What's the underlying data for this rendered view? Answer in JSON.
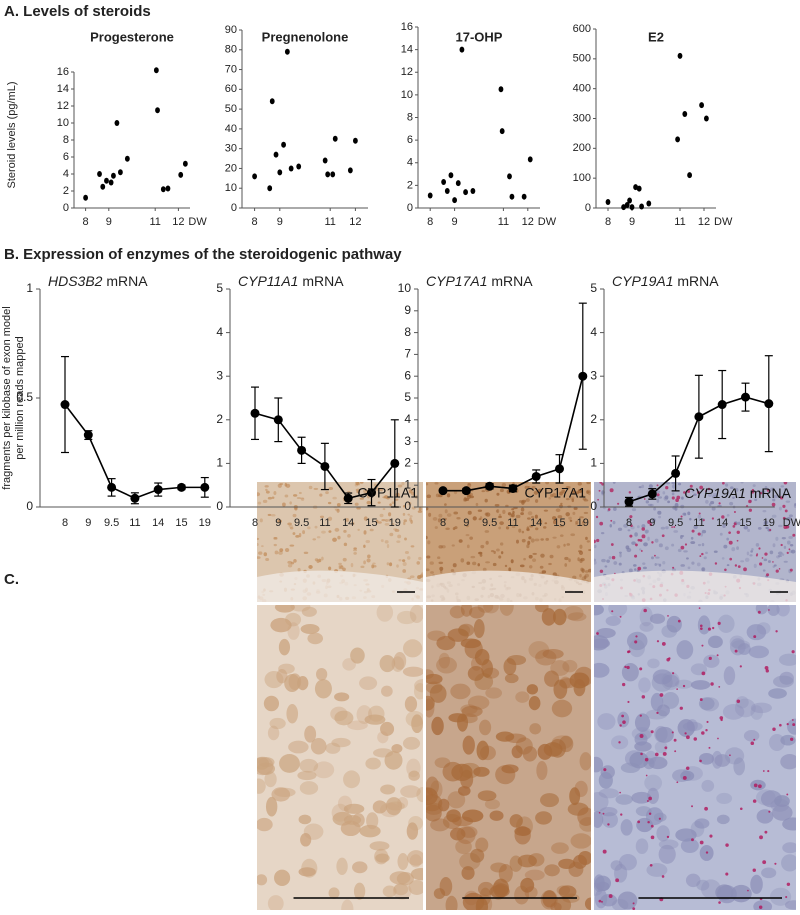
{
  "figure": {
    "panel_a": "A. Levels of steroids",
    "panel_b": "B. Expression of enzymes of the steroidogenic pathway",
    "panel_c": "C.",
    "ylabel_a": "Steroid levels (pg/mL)",
    "ylabel_b": [
      "fragments per kilobase of exon model",
      "per million reads mapped"
    ],
    "images": [
      {
        "label": "CYP11A1"
      },
      {
        "label": "CYP17A1"
      },
      {
        "label_gene": "CYP19A1",
        "label_suffix": "mRNA"
      }
    ]
  },
  "chart_data": [
    {
      "type": "scatter",
      "title": "Progesterone",
      "color": "#000000",
      "x_unit": "DW",
      "x": [
        8.0,
        8.6,
        8.74,
        8.9,
        9.1,
        9.2,
        9.35,
        9.5,
        9.8,
        11.05,
        11.1,
        11.35,
        11.55,
        12.1,
        12.3
      ],
      "values": [
        1.2,
        4,
        2.5,
        3.2,
        3,
        3.8,
        10,
        4.2,
        5.8,
        16.2,
        11.5,
        2.2,
        2.3,
        3.9,
        5.2
      ],
      "xlim": [
        7.5,
        12.5
      ],
      "xticks": [
        8,
        9,
        11,
        12
      ],
      "ylim": [
        0,
        16
      ],
      "yticks": [
        0,
        2,
        4,
        6,
        8,
        10,
        12,
        14,
        16
      ]
    },
    {
      "type": "scatter",
      "title": "Pregnenolone",
      "color": "#000000",
      "x": [
        8.0,
        8.6,
        8.7,
        8.85,
        9.0,
        9.15,
        9.3,
        9.45,
        9.75,
        10.8,
        10.9,
        11.1,
        11.2,
        11.8,
        12.0
      ],
      "values": [
        16,
        10,
        54,
        27,
        18,
        32,
        79,
        20,
        21,
        24,
        17,
        17,
        35,
        19,
        34
      ],
      "xlim": [
        7.5,
        12.5
      ],
      "xticks": [
        8,
        9,
        11,
        12
      ],
      "ylim": [
        0,
        90
      ],
      "yticks": [
        0,
        10,
        20,
        30,
        40,
        50,
        60,
        70,
        80,
        90
      ]
    },
    {
      "type": "scatter",
      "title": "17-OHP",
      "color": "#000000",
      "x_unit": "DW",
      "x": [
        8.0,
        8.55,
        8.7,
        8.85,
        9.0,
        9.15,
        9.3,
        9.45,
        9.75,
        10.9,
        10.95,
        11.25,
        11.35,
        11.85,
        12.1
      ],
      "values": [
        1.1,
        2.3,
        1.5,
        2.9,
        0.7,
        2.2,
        14,
        1.4,
        1.5,
        10.5,
        6.8,
        2.8,
        1.0,
        1.0,
        4.3
      ],
      "xlim": [
        7.5,
        12.5
      ],
      "xticks": [
        8,
        9,
        11,
        12
      ],
      "ylim": [
        0,
        16
      ],
      "yticks": [
        0,
        2,
        4,
        6,
        8,
        10,
        12,
        14,
        16
      ]
    },
    {
      "type": "scatter",
      "title": "E2",
      "color": "#000000",
      "x_unit": "DW",
      "x": [
        8.0,
        8.65,
        8.8,
        8.9,
        9.0,
        9.15,
        9.3,
        9.4,
        9.7,
        10.9,
        11.0,
        11.2,
        11.4,
        11.9,
        12.1
      ],
      "values": [
        20,
        3,
        10,
        25,
        3,
        70,
        65,
        5,
        15,
        230,
        510,
        315,
        110,
        345,
        300
      ],
      "xlim": [
        7.5,
        12.5
      ],
      "xticks": [
        8,
        9,
        11,
        12
      ],
      "ylim": [
        0,
        600
      ],
      "yticks": [
        0,
        100,
        200,
        300,
        400,
        500,
        600
      ]
    },
    {
      "type": "line",
      "title_gene": "HDS3B2",
      "title_suffix": "mRNA",
      "color": "#000000",
      "categories": [
        "8",
        "9",
        "9.5",
        "11",
        "14",
        "15",
        "19"
      ],
      "values": [
        0.47,
        0.33,
        0.09,
        0.04,
        0.08,
        0.09,
        0.09
      ],
      "errors": [
        0.22,
        0.02,
        0.04,
        0.025,
        0.03,
        0.01,
        0.045
      ],
      "ylim": [
        0,
        1
      ],
      "yticks": [
        0,
        0.5,
        1
      ]
    },
    {
      "type": "line",
      "title_gene": "CYP11A1",
      "title_suffix": "mRNA",
      "color": "#000000",
      "categories": [
        "8",
        "9",
        "9.5",
        "11",
        "14",
        "15",
        "19"
      ],
      "values": [
        2.15,
        2.0,
        1.3,
        0.93,
        0.2,
        0.33,
        1.0
      ],
      "errors": [
        0.6,
        0.5,
        0.3,
        0.53,
        0.12,
        0.3,
        1.0
      ],
      "ylim": [
        0,
        5
      ],
      "yticks": [
        0,
        1,
        2,
        3,
        4,
        5
      ]
    },
    {
      "type": "line",
      "title_gene": "CYP17A1",
      "title_suffix": "mRNA",
      "color": "#000000",
      "categories": [
        "8",
        "9",
        "9.5",
        "11",
        "14",
        "15",
        "19"
      ],
      "values": [
        0.75,
        0.75,
        0.95,
        0.85,
        1.4,
        1.75,
        6.0
      ],
      "errors": [
        0.05,
        0.1,
        0.12,
        0.15,
        0.3,
        0.65,
        3.35
      ],
      "ylim": [
        0,
        10
      ],
      "yticks": [
        0,
        1,
        2,
        3,
        4,
        5,
        6,
        7,
        8,
        9,
        10
      ]
    },
    {
      "type": "line",
      "title_gene": "CYP19A1",
      "title_suffix": "mRNA",
      "color": "#000000",
      "x_unit": "DW",
      "categories": [
        "8",
        "9",
        "9.5",
        "11",
        "14",
        "15",
        "19"
      ],
      "values": [
        0.12,
        0.3,
        0.77,
        2.07,
        2.35,
        2.52,
        2.37
      ],
      "errors": [
        0.1,
        0.12,
        0.4,
        0.95,
        0.78,
        0.32,
        1.1
      ],
      "ylim": [
        0,
        5
      ],
      "yticks": [
        0,
        1,
        2,
        3,
        4,
        5
      ]
    }
  ]
}
